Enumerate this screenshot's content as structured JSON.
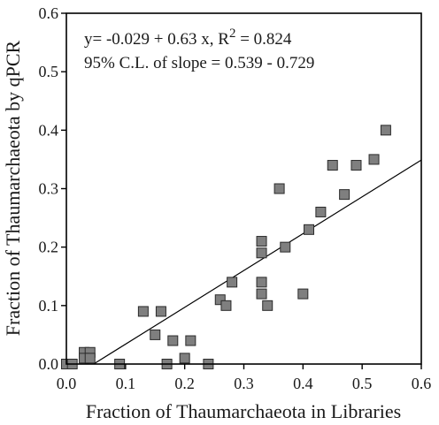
{
  "chart_data": {
    "type": "scatter",
    "title": "",
    "xlabel": "Fraction of Thaumarchaeota in Libraries",
    "ylabel": "Fraction of Thaumarchaeota by qPCR",
    "xlim": [
      0.0,
      0.6
    ],
    "ylim": [
      0.0,
      0.6
    ],
    "xticks": [
      "0.0",
      "0.1",
      "0.2",
      "0.3",
      "0.4",
      "0.5",
      "0.6"
    ],
    "yticks": [
      "0.0",
      "0.1",
      "0.2",
      "0.3",
      "0.4",
      "0.5",
      "0.6"
    ],
    "grid": false,
    "marker": "square",
    "colors": {
      "marker_fill": "#7f7f7f",
      "marker_edge": "#2b2b2b",
      "axis": "#000000",
      "line": "#000000"
    },
    "annotations": {
      "equation_prefix": "y= -0.029 + 0.63 x, R",
      "equation_sup": "2",
      "equation_suffix": " = 0.824",
      "ci": "95% C.L. of slope = 0.539 - 0.729"
    },
    "regression": {
      "intercept": -0.029,
      "slope": 0.63
    },
    "points": [
      [
        0.0,
        0.0
      ],
      [
        0.01,
        0.0
      ],
      [
        0.03,
        0.02
      ],
      [
        0.04,
        0.02
      ],
      [
        0.03,
        0.01
      ],
      [
        0.04,
        0.01
      ],
      [
        0.09,
        0.0
      ],
      [
        0.13,
        0.09
      ],
      [
        0.15,
        0.05
      ],
      [
        0.16,
        0.09
      ],
      [
        0.17,
        0.0
      ],
      [
        0.18,
        0.04
      ],
      [
        0.2,
        0.01
      ],
      [
        0.21,
        0.04
      ],
      [
        0.24,
        0.0
      ],
      [
        0.26,
        0.11
      ],
      [
        0.27,
        0.1
      ],
      [
        0.28,
        0.14
      ],
      [
        0.33,
        0.14
      ],
      [
        0.33,
        0.12
      ],
      [
        0.33,
        0.21
      ],
      [
        0.33,
        0.19
      ],
      [
        0.34,
        0.1
      ],
      [
        0.36,
        0.3
      ],
      [
        0.37,
        0.2
      ],
      [
        0.4,
        0.12
      ],
      [
        0.41,
        0.23
      ],
      [
        0.43,
        0.26
      ],
      [
        0.45,
        0.34
      ],
      [
        0.47,
        0.29
      ],
      [
        0.49,
        0.34
      ],
      [
        0.52,
        0.35
      ],
      [
        0.54,
        0.4
      ]
    ]
  }
}
